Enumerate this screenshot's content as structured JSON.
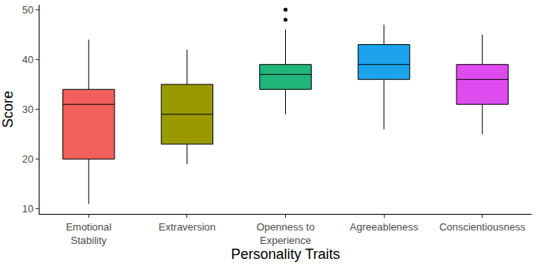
{
  "chart_data": {
    "type": "box",
    "x_label": "Personality Traits",
    "y_label": "Score",
    "categories": [
      "Emotional Stability",
      "Extraversion",
      "Openness to Experience",
      "Agreeableness",
      "Conscientiousness"
    ],
    "lower": [
      11,
      19,
      29,
      26,
      25
    ],
    "q1": [
      20,
      23,
      34,
      36,
      31
    ],
    "median": [
      31,
      29,
      37,
      39,
      36
    ],
    "q3": [
      34,
      35,
      39,
      43,
      39
    ],
    "upper": [
      44,
      42,
      46,
      47,
      45
    ],
    "outliers": [
      [],
      [],
      [
        48,
        50
      ],
      [],
      []
    ],
    "colors": [
      "#F2605B",
      "#999900",
      "#20B57B",
      "#1CA3EC",
      "#DE4CF0"
    ],
    "ylim": [
      9,
      51
    ],
    "yticks": [
      10,
      20,
      30,
      40,
      50
    ],
    "grid": false
  }
}
